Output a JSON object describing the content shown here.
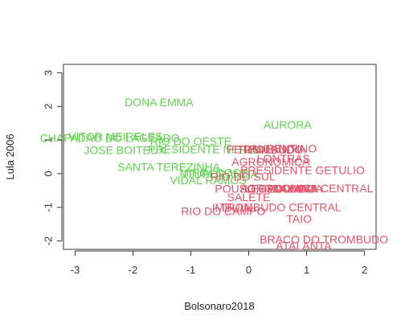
{
  "chart_data": {
    "type": "scatter",
    "title": "",
    "xlabel": "Bolsonaro2018",
    "ylabel": "Lula 2006",
    "xlim": [
      -3.2,
      2.2
    ],
    "ylim": [
      -2.25,
      3.25
    ],
    "xticks": [
      -3,
      -2,
      -1,
      0,
      1,
      2
    ],
    "yticks": [
      -2,
      -1,
      0,
      1,
      2,
      3
    ],
    "colors": {
      "green": "#61D04F",
      "red": "#DF536B"
    },
    "points": [
      {
        "label": "DONA EMMA",
        "x": -1.55,
        "y": 2.1,
        "group": "green"
      },
      {
        "label": "AURORA",
        "x": 0.67,
        "y": 1.42,
        "group": "green"
      },
      {
        "label": "CHAPADAO DO LAGEADO",
        "x": -2.4,
        "y": 1.03,
        "group": "green"
      },
      {
        "label": "VITOR MEIRELES",
        "x": -2.3,
        "y": 1.08,
        "group": "green"
      },
      {
        "label": "RIO DO OESTE",
        "x": -1.0,
        "y": 0.93,
        "group": "green"
      },
      {
        "label": "JOSE BOITEUX",
        "x": -2.14,
        "y": 0.67,
        "group": "green"
      },
      {
        "label": "PRESIDENTE NEREU",
        "x": -0.75,
        "y": 0.7,
        "group": "green"
      },
      {
        "label": "SANTA TEREZINHA",
        "x": -1.38,
        "y": 0.17,
        "group": "green"
      },
      {
        "label": "MIRIM DOCE",
        "x": -0.6,
        "y": 0.0,
        "group": "green"
      },
      {
        "label": "ITUPORANGA",
        "x": -0.48,
        "y": -0.05,
        "group": "green"
      },
      {
        "label": "VIDAL RAMOS",
        "x": -0.7,
        "y": -0.23,
        "group": "green"
      },
      {
        "label": "PETROLANDIA",
        "x": 0.3,
        "y": 0.7,
        "group": "red"
      },
      {
        "label": "LAURENTINO",
        "x": 0.55,
        "y": 0.72,
        "group": "red"
      },
      {
        "label": "TROMBUDO",
        "x": 0.37,
        "y": 0.68,
        "group": "red"
      },
      {
        "label": "LONTRAS",
        "x": 0.6,
        "y": 0.42,
        "group": "red"
      },
      {
        "label": "AGRONOMICA",
        "x": 0.38,
        "y": 0.33,
        "group": "red"
      },
      {
        "label": "PRESIDENTE GETULIO",
        "x": 0.93,
        "y": 0.07,
        "group": "red"
      },
      {
        "label": "RIO DO SUL",
        "x": -0.1,
        "y": -0.12,
        "group": "red"
      },
      {
        "label": "POUSO REDONDO",
        "x": 0.29,
        "y": -0.48,
        "group": "red"
      },
      {
        "label": "ATALANTA",
        "x": 0.8,
        "y": -0.48,
        "group": "red"
      },
      {
        "label": "LEOPOLDINA",
        "x": 0.55,
        "y": -0.47,
        "group": "red"
      },
      {
        "label": "AGRONOMICA CENTRAL",
        "x": 1.0,
        "y": -0.46,
        "group": "red"
      },
      {
        "label": "SALETE",
        "x": 0.0,
        "y": -0.73,
        "group": "red"
      },
      {
        "label": "IMBUIA",
        "x": -0.3,
        "y": -1.04,
        "group": "red"
      },
      {
        "label": "TROMBUDO CENTRAL",
        "x": 0.55,
        "y": -1.02,
        "group": "red"
      },
      {
        "label": "RIO DO CAMPO",
        "x": -0.44,
        "y": -1.14,
        "group": "red"
      },
      {
        "label": "TAIO",
        "x": 0.87,
        "y": -1.37,
        "group": "red"
      },
      {
        "label": "BRACO DO TROMBUDO",
        "x": 1.3,
        "y": -1.98,
        "group": "red"
      },
      {
        "label": "ATALANTA",
        "x": 0.95,
        "y": -2.17,
        "group": "red"
      }
    ]
  }
}
